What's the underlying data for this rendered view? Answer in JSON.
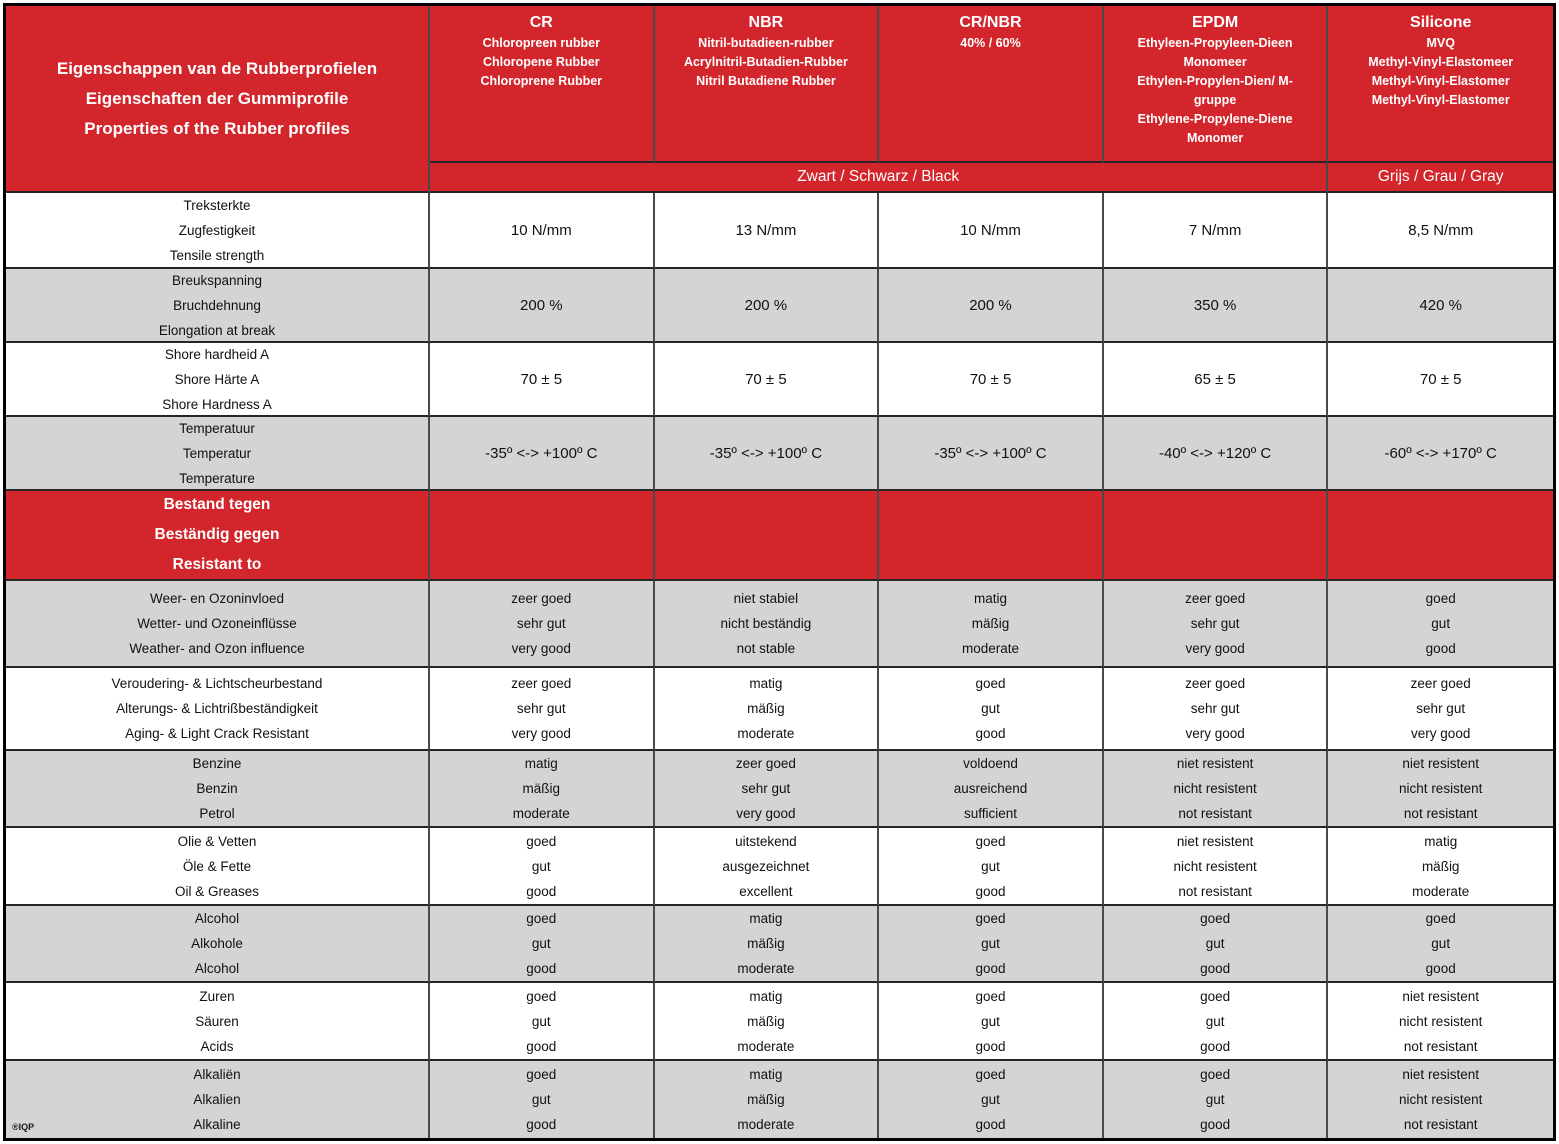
{
  "colors": {
    "header_red": "#d2262c",
    "shaded_row_gray": "#d4d4d4",
    "row_white": "#ffffff",
    "header_text": "#ffffff",
    "body_text": "#111111",
    "border": "#262626"
  },
  "table": {
    "title_lines": [
      "Eigenschappen van de Rubberprofielen",
      "Eigenschaften der Gummiprofile",
      "Properties of the Rubber profiles"
    ],
    "columns": [
      {
        "code": "CR",
        "subtitle_lines": [
          "Chloropreen rubber",
          "Chloropene Rubber",
          "Chloroprene Rubber"
        ]
      },
      {
        "code": "NBR",
        "subtitle_lines": [
          "Nitril-butadieen-rubber",
          "Acrylnitril-Butadien-Rubber",
          "Nitril Butadiene Rubber"
        ]
      },
      {
        "code": "CR/NBR",
        "subtitle_lines": [
          "40% / 60%"
        ]
      },
      {
        "code": "EPDM",
        "subtitle_lines": [
          "Ethyleen-Propyleen-Dieen Monomeer",
          "Ethylen-Propylen-Dien/ M-gruppe",
          "Ethylene-Propylene-Diene Monomer"
        ]
      },
      {
        "code": "Silicone",
        "subtitle_lines": [
          "MVQ",
          "Methyl-Vinyl-Elastomeer",
          "Methyl-Vinyl-Elastomer",
          "Methyl-Vinyl-Elastomer"
        ]
      }
    ],
    "color_band": {
      "black_label": "Zwart / Schwarz / Black",
      "gray_label": "Grijs / Grau / Gray"
    },
    "property_rows": [
      {
        "label_lines": [
          "Treksterkte",
          "Zugfestigkeit",
          "Tensile strength"
        ],
        "values": [
          "10 N/mm",
          "13 N/mm",
          "10 N/mm",
          "7 N/mm",
          "8,5 N/mm"
        ]
      },
      {
        "label_lines": [
          "Breukspanning",
          "Bruchdehnung",
          "Elongation at break"
        ],
        "values": [
          "200 %",
          "200 %",
          "200 %",
          "350 %",
          "420 %"
        ]
      },
      {
        "label_lines": [
          "Shore hardheid A",
          "Shore Härte A",
          "Shore Hardness A"
        ],
        "values": [
          "70 ± 5",
          "70 ± 5",
          "70 ± 5",
          "65 ± 5",
          "70 ± 5"
        ]
      },
      {
        "label_lines": [
          "Temperatuur",
          "Temperatur",
          "Temperature"
        ],
        "values": [
          "-35º <-> +100º C",
          "-35º <-> +100º C",
          "-35º <-> +100º C",
          "-40º <-> +120º C",
          "-60º <-> +170º C"
        ]
      }
    ],
    "section_header_lines": [
      "Bestand tegen",
      "Beständig gegen",
      "Resistant to"
    ],
    "resistance_rows": [
      {
        "label_lines": [
          "Weer- en Ozoninvloed",
          "Wetter- und Ozoneinflüsse",
          "Weather- and Ozon influence"
        ],
        "values": [
          [
            "zeer goed",
            "sehr gut",
            "very good"
          ],
          [
            "niet stabiel",
            "nicht beständig",
            "not stable"
          ],
          [
            "matig",
            "mäßig",
            "moderate"
          ],
          [
            "zeer goed",
            "sehr gut",
            "very good"
          ],
          [
            "goed",
            "gut",
            "good"
          ]
        ]
      },
      {
        "label_lines": [
          "Veroudering- & Lichtscheurbestand",
          "Alterungs- & Lichtrißbeständigkeit",
          "Aging- & Light Crack Resistant"
        ],
        "values": [
          [
            "zeer goed",
            "sehr gut",
            "very good"
          ],
          [
            "matig",
            "mäßig",
            "moderate"
          ],
          [
            "goed",
            "gut",
            "good"
          ],
          [
            "zeer goed",
            "sehr gut",
            "very good"
          ],
          [
            "zeer goed",
            "sehr gut",
            "very good"
          ]
        ]
      },
      {
        "label_lines": [
          "Benzine",
          "Benzin",
          "Petrol"
        ],
        "values": [
          [
            "matig",
            "mäßig",
            "moderate"
          ],
          [
            "zeer goed",
            "sehr gut",
            "very good"
          ],
          [
            "voldoend",
            "ausreichend",
            "sufficient"
          ],
          [
            "niet resistent",
            "nicht resistent",
            "not resistant"
          ],
          [
            "niet resistent",
            "nicht resistent",
            "not resistant"
          ]
        ]
      },
      {
        "label_lines": [
          "Olie & Vetten",
          "Öle & Fette",
          "Oil & Greases"
        ],
        "values": [
          [
            "goed",
            "gut",
            "good"
          ],
          [
            "uitstekend",
            "ausgezeichnet",
            "excellent"
          ],
          [
            "goed",
            "gut",
            "good"
          ],
          [
            "niet resistent",
            "nicht resistent",
            "not resistant"
          ],
          [
            "matig",
            "mäßig",
            "moderate"
          ]
        ]
      },
      {
        "label_lines": [
          "Alcohol",
          "Alkohole",
          "Alcohol"
        ],
        "values": [
          [
            "goed",
            "gut",
            "good"
          ],
          [
            "matig",
            "mäßig",
            "moderate"
          ],
          [
            "goed",
            "gut",
            "good"
          ],
          [
            "goed",
            "gut",
            "good"
          ],
          [
            "goed",
            "gut",
            "good"
          ]
        ]
      },
      {
        "label_lines": [
          "Zuren",
          "Säuren",
          "Acids"
        ],
        "values": [
          [
            "goed",
            "gut",
            "good"
          ],
          [
            "matig",
            "mäßig",
            "moderate"
          ],
          [
            "goed",
            "gut",
            "good"
          ],
          [
            "goed",
            "gut",
            "good"
          ],
          [
            "niet resistent",
            "nicht resistent",
            "not resistant"
          ]
        ]
      },
      {
        "label_lines": [
          "Alkaliën",
          "Alkalien",
          "Alkaline"
        ],
        "values": [
          [
            "goed",
            "gut",
            "good"
          ],
          [
            "matig",
            "mäßig",
            "moderate"
          ],
          [
            "goed",
            "gut",
            "good"
          ],
          [
            "goed",
            "gut",
            "good"
          ],
          [
            "niet resistent",
            "nicht resistent",
            "not resistant"
          ]
        ]
      }
    ],
    "footnote": "®IQP"
  }
}
